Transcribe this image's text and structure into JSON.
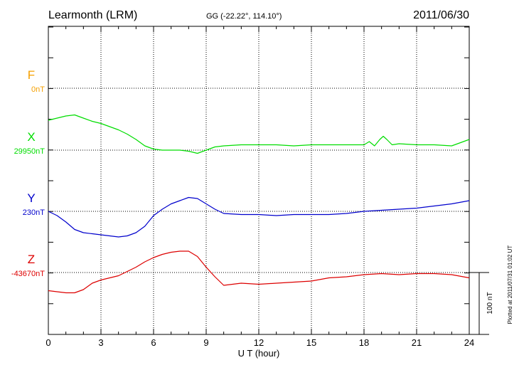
{
  "header": {
    "station": "Learmonth (LRM)",
    "coords": "GG (-22.22°, 114.10°)",
    "date": "2011/06/30"
  },
  "footer": {
    "plotted": "Plotted at 2011/07/31 01:02 UT"
  },
  "chart_data": {
    "type": "line",
    "xlabel": "U T (hour)",
    "xlim": [
      0,
      24
    ],
    "xticks": [
      "0",
      "3",
      "6",
      "9",
      "12",
      "15",
      "18",
      "21",
      "24"
    ],
    "scale_bar": "100 nT",
    "grid": true,
    "series": [
      {
        "name": "F",
        "baseline": "0nT",
        "color": "#f5a000",
        "x": [],
        "y": []
      },
      {
        "name": "X",
        "baseline": "29950nT",
        "color": "#00dd00",
        "x": [
          0,
          0.5,
          1,
          1.5,
          2,
          2.5,
          3,
          3.5,
          4,
          4.5,
          5,
          5.5,
          6,
          6.5,
          7,
          7.5,
          8,
          8.5,
          9,
          9.5,
          10,
          11,
          12,
          13,
          14,
          15,
          16,
          17,
          18,
          18.3,
          18.6,
          18.9,
          19.1,
          19.3,
          19.6,
          20,
          21,
          22,
          23,
          23.5,
          24
        ],
        "y": [
          29978,
          29980,
          29982,
          29983,
          29980,
          29977,
          29975,
          29972,
          29969,
          29965,
          29960,
          29954,
          29951,
          29950,
          29950,
          29950,
          29949,
          29947,
          29950,
          29953,
          29954,
          29955,
          29955,
          29955,
          29954,
          29955,
          29955,
          29955,
          29955,
          29958,
          29954,
          29960,
          29963,
          29960,
          29955,
          29956,
          29955,
          29955,
          29954,
          29957,
          29960
        ]
      },
      {
        "name": "Y",
        "baseline": "230nT",
        "color": "#0000cc",
        "x": [
          0,
          0.5,
          1,
          1.5,
          2,
          2.5,
          3,
          3.5,
          4,
          4.5,
          5,
          5.5,
          6,
          6.5,
          7,
          7.5,
          8,
          8.5,
          9,
          9.5,
          10,
          11,
          12,
          13,
          14,
          15,
          16,
          17,
          18,
          19,
          20,
          21,
          22,
          23,
          24
        ],
        "y": [
          230,
          226,
          220,
          213,
          210,
          209,
          208,
          207,
          206,
          207,
          210,
          216,
          226,
          232,
          237,
          240,
          243,
          242,
          237,
          232,
          228,
          227,
          227,
          226,
          227,
          227,
          227,
          228,
          230,
          231,
          232,
          233,
          235,
          237,
          240
        ]
      },
      {
        "name": "Z",
        "baseline": "-43670nT",
        "color": "#dd0000",
        "x": [
          0,
          0.5,
          1,
          1.5,
          2,
          2.5,
          3,
          3.5,
          4,
          4.5,
          5,
          5.5,
          6,
          6.5,
          7,
          7.5,
          8,
          8.5,
          9,
          9.5,
          10,
          11,
          12,
          13,
          14,
          15,
          16,
          17,
          18,
          19,
          20,
          21,
          22,
          23,
          24
        ],
        "y": [
          -43687,
          -43688,
          -43689,
          -43689,
          -43686,
          -43680,
          -43677,
          -43675,
          -43673,
          -43669,
          -43665,
          -43660,
          -43656,
          -43653,
          -43651,
          -43650,
          -43650,
          -43655,
          -43665,
          -43674,
          -43682,
          -43680,
          -43681,
          -43680,
          -43679,
          -43678,
          -43675,
          -43674,
          -43672,
          -43671,
          -43672,
          -43671,
          -43671,
          -43672,
          -43675
        ]
      }
    ]
  }
}
